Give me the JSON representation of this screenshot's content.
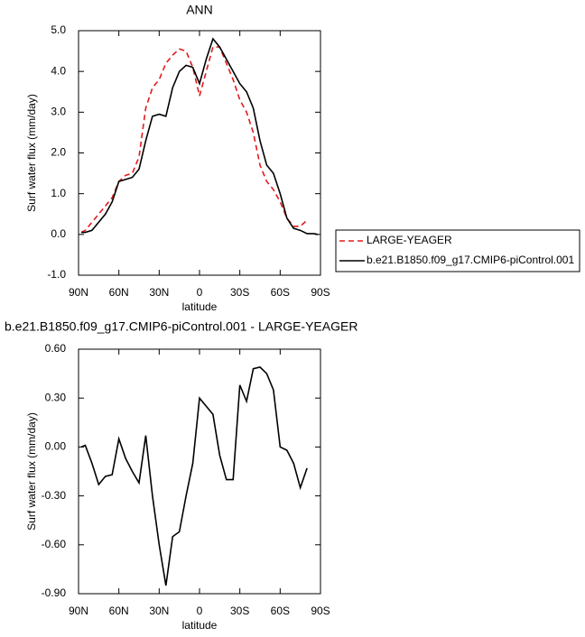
{
  "chart_data": [
    {
      "type": "line",
      "title": "ANN",
      "x_label": "latitude",
      "y_label": "Surf water flux (mm/day)",
      "legend": "right",
      "x": [
        88,
        85,
        80,
        75,
        70,
        65,
        60,
        55,
        50,
        45,
        40,
        35,
        30,
        25,
        20,
        15,
        10,
        5,
        0,
        -5,
        -10,
        -15,
        -20,
        -25,
        -30,
        -35,
        -40,
        -45,
        -50,
        -55,
        -60,
        -65,
        -70,
        -75,
        -80,
        -85,
        -88
      ],
      "series": [
        {
          "name": "LARGE-YEAGER",
          "color": "#e41a1c",
          "linestyle": "dashed",
          "values": [
            0.05,
            0.1,
            0.3,
            0.5,
            0.7,
            0.9,
            1.3,
            1.45,
            1.5,
            1.9,
            3.1,
            3.6,
            3.8,
            4.2,
            4.4,
            4.55,
            4.5,
            4.1,
            3.4,
            4.0,
            4.6,
            4.6,
            4.2,
            3.8,
            3.3,
            3.0,
            2.5,
            1.7,
            1.3,
            1.1,
            0.8,
            0.4,
            0.2,
            0.2,
            0.35,
            null,
            null
          ]
        },
        {
          "name": "b.e21.B1850.f09_g17.CMIP6-piControl.001",
          "color": "#000000",
          "linestyle": "solid",
          "values": [
            0.05,
            0.05,
            0.1,
            0.3,
            0.5,
            0.8,
            1.3,
            1.35,
            1.4,
            1.6,
            2.3,
            2.9,
            2.95,
            2.9,
            3.6,
            4.0,
            4.15,
            4.1,
            3.7,
            4.3,
            4.8,
            4.6,
            4.3,
            4.0,
            3.7,
            3.5,
            3.1,
            2.3,
            1.7,
            1.5,
            1.0,
            0.4,
            0.15,
            0.1,
            0.02,
            0.02,
            0.0
          ]
        }
      ],
      "xlim": [
        90,
        -90
      ],
      "xticks": [
        {
          "value": 90,
          "label": "90N"
        },
        {
          "value": 60,
          "label": "60N"
        },
        {
          "value": 30,
          "label": "30N"
        },
        0,
        {
          "value": -30,
          "label": "30S"
        },
        {
          "value": -60,
          "label": "60S"
        },
        {
          "value": -90,
          "label": "90S"
        }
      ],
      "ylim": [
        -1,
        5
      ],
      "yticks": [
        {
          "value": -1,
          "label": "-1.0"
        },
        {
          "value": 0,
          "label": "0.0"
        },
        {
          "value": 1,
          "label": "1.0"
        },
        {
          "value": 2,
          "label": "2.0"
        },
        {
          "value": 3,
          "label": "3.0"
        },
        {
          "value": 4,
          "label": "4.0"
        },
        {
          "value": 5,
          "label": "5.0"
        }
      ]
    },
    {
      "type": "line",
      "title": "b.e21.B1850.f09_g17.CMIP6-piControl.001 - LARGE-YEAGER",
      "x_label": "latitude",
      "y_label": "Surf water flux (mm/day)",
      "x": [
        88,
        85,
        80,
        75,
        70,
        65,
        60,
        55,
        50,
        45,
        40,
        35,
        30,
        25,
        20,
        15,
        10,
        5,
        0,
        -5,
        -10,
        -15,
        -20,
        -25,
        -30,
        -35,
        -40,
        -45,
        -50,
        -55,
        -60,
        -65,
        -70,
        -75,
        -80
      ],
      "series": [
        {
          "color": "#000000",
          "linestyle": "solid",
          "values": [
            0.0,
            0.01,
            -0.1,
            -0.23,
            -0.18,
            -0.17,
            0.05,
            -0.07,
            -0.15,
            -0.22,
            0.07,
            -0.3,
            -0.6,
            -0.85,
            -0.55,
            -0.52,
            -0.3,
            -0.1,
            0.3,
            0.25,
            0.2,
            -0.05,
            -0.2,
            -0.2,
            0.38,
            0.28,
            0.48,
            0.49,
            0.45,
            0.35,
            0.0,
            -0.02,
            -0.1,
            -0.25,
            -0.13
          ]
        }
      ],
      "xlim": [
        90,
        -90
      ],
      "xticks": [
        {
          "value": 90,
          "label": "90N"
        },
        {
          "value": 60,
          "label": "60N"
        },
        {
          "value": 30,
          "label": "30N"
        },
        0,
        {
          "value": -30,
          "label": "30S"
        },
        {
          "value": -60,
          "label": "60S"
        },
        {
          "value": -90,
          "label": "90S"
        }
      ],
      "ylim": [
        -0.9,
        0.6
      ],
      "yticks": [
        {
          "value": -0.9,
          "label": "-0.90"
        },
        {
          "value": -0.6,
          "label": "-0.60"
        },
        {
          "value": -0.3,
          "label": "-0.30"
        },
        {
          "value": 0,
          "label": "0.00"
        },
        {
          "value": 0.3,
          "label": "0.30"
        },
        {
          "value": 0.6,
          "label": "0.60"
        }
      ]
    }
  ]
}
